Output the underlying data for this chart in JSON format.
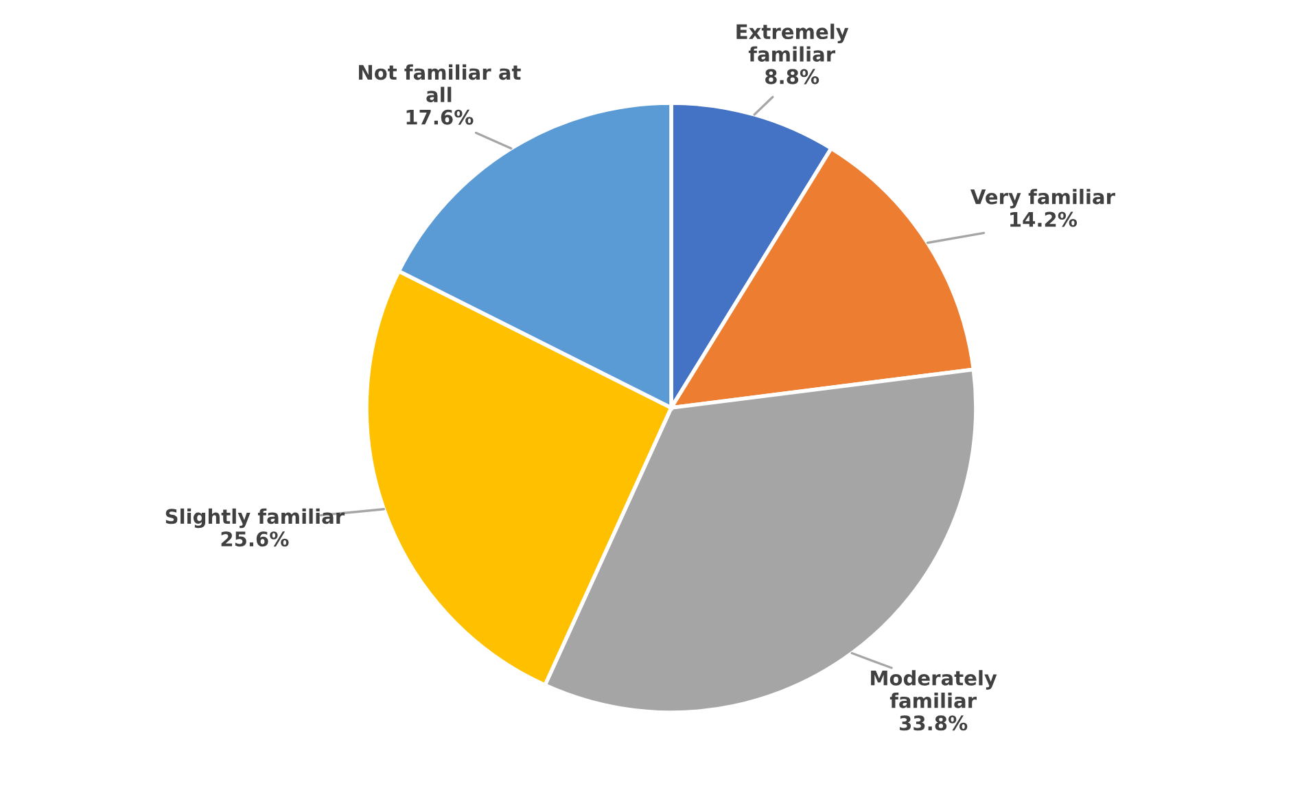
{
  "chart_data": {
    "type": "pie",
    "categories": [
      "Extremely\nfamiliar",
      "Very familiar",
      "Moderately\nfamiliar",
      "Slightly familiar",
      "Not familiar at\nall"
    ],
    "values": [
      8.8,
      14.2,
      33.8,
      25.6,
      17.6
    ],
    "colors": [
      "#4472c4",
      "#ed7d31",
      "#a5a5a5",
      "#ffc000",
      "#5b9bd5"
    ],
    "value_labels": [
      "8.8%",
      "14.2%",
      "33.8%",
      "25.6%",
      "17.6%"
    ],
    "legend": false
  }
}
